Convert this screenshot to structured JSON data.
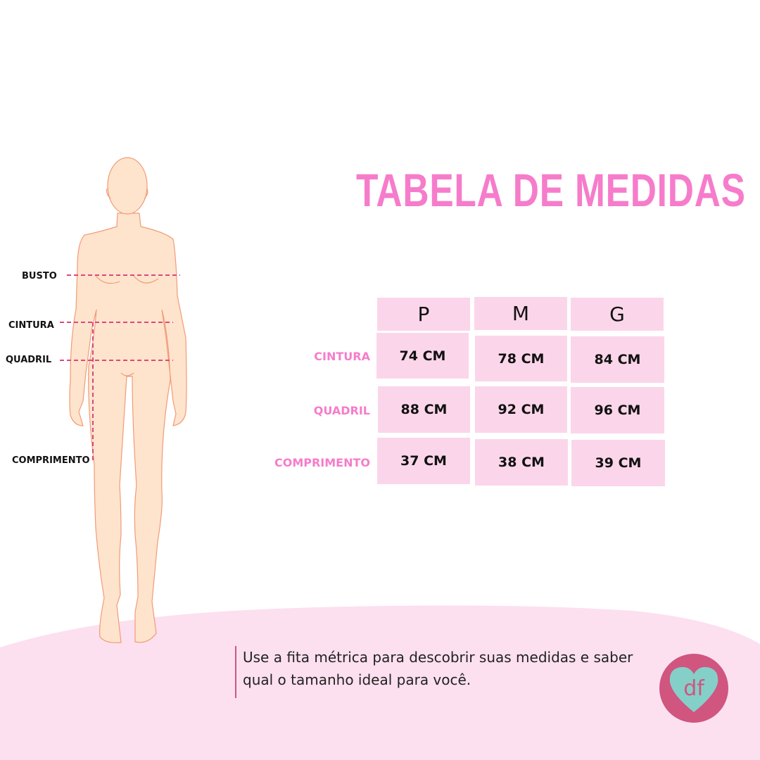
{
  "title": "TABELA DE MEDIDAS",
  "table": {
    "headers": [
      "P",
      "M",
      "G"
    ],
    "rows": [
      {
        "label": "CINTURA",
        "values": [
          "74 CM",
          "78 CM",
          "84 CM"
        ]
      },
      {
        "label": "QUADRIL",
        "values": [
          "88 CM",
          "92 CM",
          "96 CM"
        ]
      },
      {
        "label": "COMPRIMENTO",
        "values": [
          "37 CM",
          "38  CM",
          "39 CM"
        ]
      }
    ]
  },
  "figure_labels": {
    "busto": "BUSTO",
    "cintura": "CINTURA",
    "quadril": "QUADRIL",
    "comprimento": "COMPRIMENTO"
  },
  "note": "Use a fita métrica para descobrir suas medidas e saber qual o tamanho ideal para você.",
  "logo": {
    "text": "df",
    "icon": "heart-logo-icon"
  },
  "colors": {
    "accent": "#f67ccb",
    "cell": "#fbd6ea",
    "background_blob": "#fce0ef",
    "logo_circle": "#d0557f",
    "logo_heart": "#84d0c8"
  }
}
